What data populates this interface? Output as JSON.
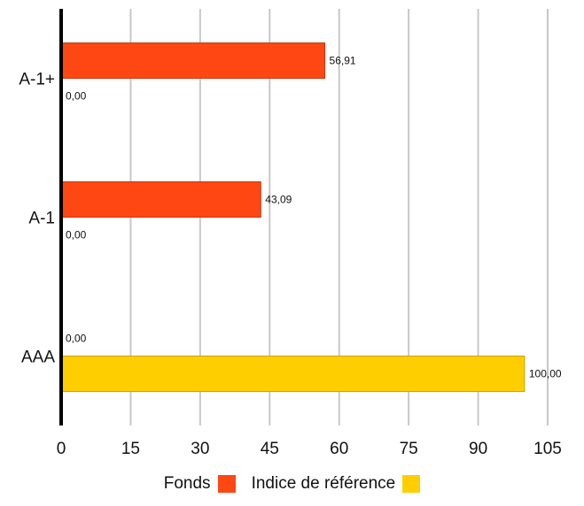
{
  "chart_data": {
    "type": "bar",
    "orientation": "horizontal",
    "categories": [
      "A-1+",
      "A-1",
      "AAA"
    ],
    "series": [
      {
        "name": "Fonds",
        "values": [
          56.91,
          43.09,
          0.0
        ],
        "labels": [
          "56,91",
          "43,09",
          "0,00"
        ],
        "color": "#FF4713"
      },
      {
        "name": "Indice de référence",
        "values": [
          0.0,
          0.0,
          100.0
        ],
        "labels": [
          "0,00",
          "0,00",
          "100,00"
        ],
        "color": "#FFCE00"
      }
    ],
    "x_ticks": [
      "0",
      "15",
      "30",
      "45",
      "60",
      "75",
      "90",
      "105"
    ],
    "xlim": [
      0,
      105
    ],
    "grid": true,
    "legend_position": "bottom"
  }
}
